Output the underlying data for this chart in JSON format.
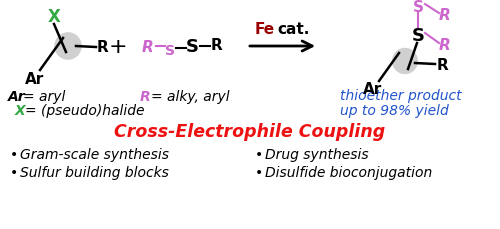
{
  "bg_color": "#ffffff",
  "title_text": "Cross-Electrophile Coupling",
  "title_color": "#ee1111",
  "title_fontsize": 12.5,
  "bullet_items_left": [
    "Gram-scale synthesis",
    "Sulfur building blocks"
  ],
  "bullet_items_right": [
    "Drug synthesis",
    "Disulfide bioconjugation"
  ],
  "bullet_fontsize": 10,
  "bullet_color": "#000000",
  "fe_color": "#990000",
  "arrow_color": "#000000",
  "green_color": "#33aa44",
  "purple_color": "#cc66cc",
  "blue_color": "#2255cc",
  "black_color": "#000000",
  "gray_color": "#d0d0d0",
  "fig_width": 5.0,
  "fig_height": 2.3,
  "dpi": 100
}
